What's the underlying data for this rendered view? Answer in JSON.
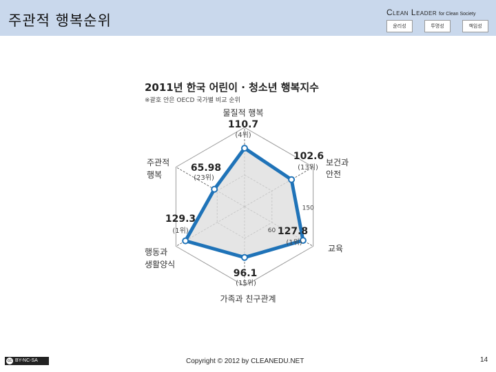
{
  "slide": {
    "title": "주관적 행복순위",
    "brand_main": "Clean Leader",
    "brand_sub": "for Clean Society",
    "pills": [
      "윤리성",
      "투명성",
      "책임성"
    ],
    "license": "BY-NC-SA",
    "copyright": "Copyright © 2012 by CLEANEDU.NET",
    "page_number": "14"
  },
  "chart_data": {
    "type": "radar",
    "title": "2011년 한국 어린이 · 청소년 행복지수",
    "subtitle": "※괄호 안은 OECD 국가별 비교 순위",
    "axes": [
      {
        "label": "물질적 행복",
        "value": 110.7,
        "rank": "(4위)"
      },
      {
        "label": "보건과 안전",
        "value": 102.6,
        "rank": "(13위)"
      },
      {
        "label": "교육",
        "value": 127.8,
        "rank": "(1위)"
      },
      {
        "label": "가족과 친구관계",
        "value": 96.1,
        "rank": "(15위)"
      },
      {
        "label": "행동과 생활양식",
        "value": 129.3,
        "rank": "(1위)"
      },
      {
        "label": "주관적 행복",
        "value": 65.98,
        "rank": "(23위)"
      }
    ],
    "scale_labels": [
      "60",
      "150"
    ],
    "range": [
      0,
      150
    ],
    "colors": {
      "series": "#1f73b8",
      "fill": "#dedede"
    }
  }
}
